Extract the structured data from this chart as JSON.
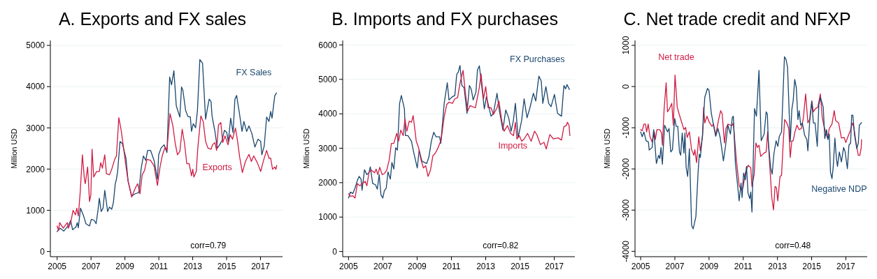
{
  "chart_data": [
    {
      "type": "line",
      "title": "A. Exports and FX sales",
      "ylabel": "Million USD",
      "annotations": [
        "corr=0.79"
      ],
      "grid": "y",
      "xlim": [
        2004.6,
        2018.3
      ],
      "xticks": [
        2005,
        2007,
        2009,
        2011,
        2013,
        2015,
        2017
      ],
      "ylim": [
        -125,
        5120
      ],
      "yticks": [
        0,
        1000,
        2000,
        3000,
        4000,
        5000
      ],
      "series": [
        {
          "name": "FX Sales",
          "color": "#1a476f",
          "x": [
            2005.0,
            2005.18,
            2005.39,
            2005.66,
            2005.8,
            2005.91,
            2006.11,
            2006.19,
            2006.25,
            2006.38,
            2006.56,
            2006.7,
            2006.91,
            2007.02,
            2007.19,
            2007.3,
            2007.41,
            2007.49,
            2007.6,
            2007.71,
            2007.81,
            2007.98,
            2008.09,
            2008.22,
            2008.32,
            2008.43,
            2008.5,
            2008.57,
            2008.71,
            2008.85,
            2009.06,
            2009.19,
            2009.4,
            2009.61,
            2009.82,
            2009.96,
            2010.09,
            2010.23,
            2010.34,
            2010.51,
            2010.72,
            2010.92,
            2010.99,
            2011.13,
            2011.31,
            2011.48,
            2011.64,
            2011.75,
            2011.89,
            2012.03,
            2012.24,
            2012.34,
            2012.42,
            2012.58,
            2012.72,
            2012.86,
            2012.93,
            2013.03,
            2013.17,
            2013.28,
            2013.42,
            2013.58,
            2013.76,
            2013.86,
            2013.97,
            2014.08,
            2014.14,
            2014.31,
            2014.45,
            2014.59,
            2014.73,
            2014.87,
            2015.01,
            2015.1,
            2015.24,
            2015.38,
            2015.49,
            2015.59,
            2015.77,
            2015.91,
            2016.02,
            2016.18,
            2016.32,
            2016.49,
            2016.67,
            2016.85,
            2017.01,
            2017.08,
            2017.22,
            2017.36,
            2017.5,
            2017.6,
            2017.68,
            2017.84,
            2017.94
          ],
          "values": [
            485,
            566,
            496,
            631,
            755,
            529,
            593,
            701,
            577,
            1052,
            863,
            674,
            620,
            782,
            755,
            674,
            998,
            1294,
            971,
            1052,
            1483,
            971,
            1079,
            1025,
            1187,
            1645,
            1753,
            1942,
            2670,
            2616,
            2265,
            1699,
            1348,
            1402,
            1429,
            2023,
            2319,
            2211,
            2454,
            2454,
            2211,
            1753,
            2346,
            2508,
            2589,
            2400,
            4234,
            4045,
            4385,
            3533,
            3263,
            3991,
            3910,
            3425,
            3274,
            3263,
            2913,
            3101,
            3004,
            3425,
            4655,
            4569,
            3209,
            3452,
            3695,
            3641,
            3290,
            2913,
            2508,
            2589,
            2697,
            2940,
            2886,
            2670,
            3236,
            2886,
            3695,
            3786,
            3317,
            2913,
            3155,
            2913,
            3047,
            2859,
            2535,
            2724,
            2670,
            2346,
            2562,
            3263,
            3155,
            3398,
            3236,
            3776,
            3846
          ]
        },
        {
          "name": "Exports",
          "color": "#d01c44",
          "x": [
            2005.0,
            2005.08,
            2005.15,
            2005.36,
            2005.6,
            2005.66,
            2005.8,
            2005.94,
            2006.08,
            2006.16,
            2006.25,
            2006.36,
            2006.49,
            2006.61,
            2006.66,
            2006.8,
            2006.91,
            2006.99,
            2007.06,
            2007.16,
            2007.33,
            2007.49,
            2007.57,
            2007.67,
            2007.81,
            2007.91,
            2008.09,
            2008.22,
            2008.4,
            2008.5,
            2008.64,
            2008.78,
            2008.92,
            2009.06,
            2009.19,
            2009.4,
            2009.61,
            2009.75,
            2009.89,
            2010.02,
            2010.16,
            2010.3,
            2010.51,
            2010.72,
            2010.92,
            2011.06,
            2011.2,
            2011.37,
            2011.48,
            2011.66,
            2011.83,
            2011.97,
            2012.1,
            2012.24,
            2012.38,
            2012.52,
            2012.65,
            2012.79,
            2012.93,
            2013.0,
            2013.07,
            2013.21,
            2013.3,
            2013.48,
            2013.62,
            2013.76,
            2013.9,
            2014.08,
            2014.17,
            2014.31,
            2014.41,
            2014.52,
            2014.66,
            2014.77,
            2014.91,
            2015.08,
            2015.22,
            2015.35,
            2015.52,
            2015.63,
            2015.77,
            2015.93,
            2016.11,
            2016.32,
            2016.46,
            2016.6,
            2016.81,
            2017.01,
            2017.18,
            2017.36,
            2017.5,
            2017.6,
            2017.71,
            2017.84,
            2017.91,
            2017.96
          ],
          "values": [
            620,
            512,
            701,
            566,
            701,
            566,
            701,
            998,
            890,
            1052,
            863,
            1429,
            2346,
            1753,
            1645,
            2050,
            1214,
            1375,
            2481,
            1807,
            1942,
            1942,
            2157,
            2023,
            2346,
            1888,
            1861,
            1996,
            2238,
            2319,
            3247,
            2940,
            2508,
            2077,
            1699,
            1321,
            1537,
            1645,
            1402,
            1861,
            1969,
            2238,
            2211,
            2077,
            1602,
            2023,
            2319,
            2535,
            2454,
            3344,
            3047,
            2616,
            2346,
            2427,
            2967,
            2616,
            2130,
            2130,
            1834,
            1996,
            1807,
            1942,
            2508,
            3290,
            3155,
            2670,
            2508,
            2481,
            2589,
            2643,
            2454,
            3074,
            3128,
            2643,
            2805,
            2589,
            2832,
            2724,
            2994,
            2724,
            2292,
            1915,
            2184,
            2357,
            2184,
            2319,
            2157,
            1942,
            2211,
            2454,
            2265,
            2265,
            1996,
            2050,
            1996,
            2088
          ]
        }
      ]
    },
    {
      "type": "line",
      "title": "B. Imports and FX purchases",
      "ylabel": "Million USD",
      "annotations": [
        "corr=0.82"
      ],
      "grid": "y",
      "xlim": [
        2004.66,
        2018.2
      ],
      "xticks": [
        2005,
        2007,
        2009,
        2011,
        2013,
        2015,
        2017
      ],
      "ylim": [
        -150,
        6130
      ],
      "yticks": [
        0,
        1000,
        2000,
        3000,
        4000,
        5000,
        6000
      ],
      "series": [
        {
          "name": "FX Purchases",
          "color": "#1a476f",
          "x": [
            2005.0,
            2005.11,
            2005.25,
            2005.38,
            2005.52,
            2005.62,
            2005.73,
            2005.79,
            2005.93,
            2006.07,
            2006.2,
            2006.27,
            2006.41,
            2006.57,
            2006.68,
            2006.79,
            2006.89,
            2007.0,
            2007.09,
            2007.2,
            2007.3,
            2007.44,
            2007.53,
            2007.64,
            2007.75,
            2007.85,
            2007.98,
            2008.08,
            2008.26,
            2008.32,
            2008.46,
            2008.67,
            2008.8,
            2009.01,
            2009.12,
            2009.28,
            2009.42,
            2009.56,
            2009.69,
            2009.83,
            2009.97,
            2010.1,
            2010.31,
            2010.38,
            2010.58,
            2010.76,
            2010.86,
            2011.06,
            2011.2,
            2011.31,
            2011.4,
            2011.5,
            2011.61,
            2011.74,
            2011.91,
            2012.05,
            2012.16,
            2012.27,
            2012.43,
            2012.52,
            2012.63,
            2012.81,
            2012.92,
            2013.04,
            2013.18,
            2013.31,
            2013.45,
            2013.66,
            2013.79,
            2014.0,
            2014.17,
            2014.34,
            2014.48,
            2014.61,
            2014.73,
            2014.89,
            2015.1,
            2015.24,
            2015.41,
            2015.58,
            2015.78,
            2015.92,
            2016.1,
            2016.24,
            2016.33,
            2016.51,
            2016.67,
            2016.81,
            2017.01,
            2017.19,
            2017.42,
            2017.56,
            2017.66,
            2017.74,
            2017.88
          ],
          "values": [
            1553,
            1728,
            1683,
            1845,
            2071,
            2181,
            2104,
            1780,
            2375,
            2233,
            2298,
            2460,
            1974,
            1942,
            1812,
            2233,
            1650,
            1553,
            1767,
            1845,
            2311,
            2104,
            2589,
            2395,
            3010,
            2945,
            4304,
            4531,
            4142,
            3366,
            3366,
            3204,
            2880,
            2427,
            2945,
            2621,
            2589,
            2557,
            2751,
            3204,
            3463,
            3333,
            3333,
            3139,
            4304,
            4899,
            4401,
            4498,
            4531,
            5146,
            5210,
            5405,
            4822,
            4757,
            4013,
            4822,
            4706,
            4401,
            4628,
            5275,
            5392,
            4628,
            4142,
            4498,
            4207,
            3929,
            4013,
            4595,
            4110,
            3528,
            4110,
            3884,
            3495,
            3786,
            4304,
            3301,
            3819,
            4433,
            3884,
            4175,
            4595,
            4369,
            5094,
            4951,
            4304,
            4790,
            4304,
            4207,
            4563,
            4013,
            3929,
            4822,
            4725,
            4848,
            4706
          ]
        },
        {
          "name": "Imports",
          "color": "#d01c44",
          "x": [
            2005.0,
            2005.11,
            2005.25,
            2005.38,
            2005.52,
            2005.66,
            2005.79,
            2005.97,
            2006.07,
            2006.2,
            2006.34,
            2006.52,
            2006.61,
            2006.71,
            2006.82,
            2006.96,
            2007.09,
            2007.23,
            2007.37,
            2007.5,
            2007.64,
            2007.81,
            2007.92,
            2008.05,
            2008.19,
            2008.29,
            2008.4,
            2008.54,
            2008.67,
            2008.77,
            2008.95,
            2009.09,
            2009.23,
            2009.37,
            2009.5,
            2009.64,
            2009.78,
            2009.92,
            2010.05,
            2010.19,
            2010.4,
            2010.58,
            2010.73,
            2010.86,
            2011.06,
            2011.2,
            2011.36,
            2011.5,
            2011.68,
            2011.81,
            2011.95,
            2012.09,
            2012.22,
            2012.4,
            2012.5,
            2012.63,
            2012.73,
            2012.87,
            2013.0,
            2013.14,
            2013.31,
            2013.45,
            2013.66,
            2013.77,
            2013.93,
            2014.07,
            2014.27,
            2014.45,
            2014.62,
            2014.73,
            2014.82,
            2014.96,
            2015.1,
            2015.24,
            2015.44,
            2015.65,
            2015.85,
            2015.99,
            2016.19,
            2016.4,
            2016.53,
            2016.74,
            2016.95,
            2017.22,
            2017.42,
            2017.56,
            2017.7,
            2017.77,
            2017.86,
            2017.91
          ],
          "values": [
            1683,
            1599,
            1618,
            1553,
            1974,
            1909,
            1974,
            2039,
            1909,
            2311,
            2363,
            2285,
            2395,
            2233,
            2447,
            2233,
            2265,
            2363,
            2654,
            3139,
            3139,
            3430,
            3204,
            3528,
            3366,
            3851,
            3495,
            3786,
            3754,
            3948,
            3204,
            3010,
            2654,
            2427,
            2492,
            2181,
            2363,
            2783,
            2848,
            2977,
            3236,
            3916,
            4272,
            4336,
            4304,
            4433,
            4466,
            4886,
            5262,
            4628,
            4078,
            4239,
            4207,
            4175,
            4433,
            4770,
            5159,
            4433,
            4790,
            4175,
            4175,
            3981,
            4175,
            4369,
            3819,
            3495,
            3657,
            3430,
            3366,
            3754,
            3269,
            3366,
            3204,
            3269,
            3430,
            3204,
            3495,
            3385,
            3107,
            3172,
            2977,
            3398,
            3269,
            3301,
            3236,
            3625,
            3657,
            3754,
            3657,
            3366
          ]
        }
      ]
    },
    {
      "type": "line",
      "title": "C. Net trade credit and NFXP",
      "ylabel": "Million USD",
      "annotations": [
        "corr=0.48"
      ],
      "grid": "y",
      "xlim": [
        2004.67,
        2018.25
      ],
      "xticks": [
        2005,
        2007,
        2009,
        2011,
        2013,
        2015,
        2017
      ],
      "ylim": [
        -4130,
        1119
      ],
      "yticks": [
        -4000,
        -3000,
        -2000,
        -1000,
        0,
        1000
      ],
      "series": [
        {
          "name": "Net trade",
          "color": "#d01c44",
          "x": [
            2005.0,
            2005.09,
            2005.19,
            2005.28,
            2005.35,
            2005.44,
            2005.54,
            2005.67,
            2005.8,
            2005.86,
            2005.95,
            2006.12,
            2006.22,
            2006.27,
            2006.37,
            2006.49,
            2006.57,
            2006.69,
            2006.82,
            2006.91,
            2007.01,
            2007.14,
            2007.25,
            2007.37,
            2007.53,
            2007.63,
            2007.72,
            2007.85,
            2007.98,
            2008.11,
            2008.17,
            2008.27,
            2008.4,
            2008.49,
            2008.62,
            2008.68,
            2008.75,
            2008.88,
            2009.0,
            2009.17,
            2009.26,
            2009.39,
            2009.56,
            2009.68,
            2009.77,
            2009.9,
            2009.99,
            2010.1,
            2010.25,
            2010.36,
            2010.42,
            2010.59,
            2010.76,
            2010.87,
            2010.99,
            2011.12,
            2011.28,
            2011.44,
            2011.51,
            2011.64,
            2011.74,
            2011.83,
            2011.92,
            2012.02,
            2012.22,
            2012.34,
            2012.43,
            2012.54,
            2012.67,
            2012.77,
            2012.86,
            2012.94,
            2013.02,
            2013.15,
            2013.24,
            2013.33,
            2013.42,
            2013.55,
            2013.66,
            2013.75,
            2013.84,
            2013.92,
            2014.01,
            2014.14,
            2014.27,
            2014.4,
            2014.52,
            2014.65,
            2014.78,
            2014.91,
            2015.01,
            2015.1,
            2015.23,
            2015.36,
            2015.51,
            2015.62,
            2015.74,
            2015.85,
            2015.94,
            2016.03,
            2016.19,
            2016.32,
            2016.41,
            2016.58,
            2016.74,
            2016.9,
            2017.0,
            2017.13,
            2017.26,
            2017.38,
            2017.47,
            2017.6,
            2017.73,
            2017.82,
            2017.9,
            2017.92
          ],
          "values": [
            -1046,
            -1073,
            -911,
            -911,
            -1100,
            -911,
            -1208,
            -1343,
            -1100,
            -1289,
            -1046,
            -1046,
            -1127,
            -1425,
            -560,
            91,
            -613,
            -533,
            -408,
            -938,
            279,
            -505,
            -667,
            -829,
            -1046,
            -992,
            -1235,
            -1100,
            -1533,
            -1668,
            -1533,
            -1846,
            -1219,
            -1560,
            -1208,
            -505,
            -884,
            -721,
            -857,
            -965,
            -911,
            -1181,
            -802,
            -586,
            -667,
            -1370,
            -1019,
            -911,
            -938,
            -938,
            -884,
            -1749,
            -2398,
            -2506,
            -2452,
            -2100,
            -1911,
            -1965,
            -2425,
            -2128,
            -1370,
            -1478,
            -1425,
            -1695,
            -1614,
            -1587,
            -1100,
            -1857,
            -2695,
            -2993,
            -2425,
            -2452,
            -2776,
            -2182,
            -2155,
            -1425,
            -802,
            -884,
            -1019,
            -1722,
            -1316,
            -1316,
            -1127,
            -938,
            -1046,
            -1019,
            -748,
            -180,
            -884,
            -775,
            -343,
            -613,
            -533,
            -505,
            -180,
            -748,
            -992,
            -1154,
            -1262,
            -1019,
            -911,
            -586,
            -829,
            -884,
            -1251,
            -1235,
            -1360,
            -1208,
            -1073,
            -884,
            -992,
            -1370,
            -1668,
            -1668,
            -1478,
            -1289
          ]
        },
        {
          "name": "Negative NDP",
          "color": "#1a476f",
          "x": [
            2005.0,
            2005.09,
            2005.19,
            2005.32,
            2005.45,
            2005.5,
            2005.67,
            2005.76,
            2005.86,
            2005.92,
            2006.05,
            2006.12,
            2006.19,
            2006.27,
            2006.4,
            2006.57,
            2006.66,
            2006.76,
            2006.86,
            2006.99,
            2007.08,
            2007.17,
            2007.27,
            2007.34,
            2007.43,
            2007.53,
            2007.59,
            2007.66,
            2007.75,
            2007.85,
            2007.98,
            2008.07,
            2008.23,
            2008.36,
            2008.43,
            2008.49,
            2008.62,
            2008.75,
            2008.91,
            2009.0,
            2009.13,
            2009.26,
            2009.39,
            2009.52,
            2009.65,
            2009.84,
            2009.97,
            2010.1,
            2010.25,
            2010.36,
            2010.42,
            2010.54,
            2010.67,
            2010.76,
            2010.87,
            2010.93,
            2011.02,
            2011.12,
            2011.19,
            2011.28,
            2011.38,
            2011.44,
            2011.51,
            2011.66,
            2011.77,
            2011.92,
            2012.05,
            2012.22,
            2012.34,
            2012.41,
            2012.47,
            2012.6,
            2012.69,
            2012.79,
            2012.92,
            2013.02,
            2013.11,
            2013.24,
            2013.41,
            2013.5,
            2013.59,
            2013.75,
            2013.84,
            2013.92,
            2014.01,
            2014.1,
            2014.2,
            2014.27,
            2014.36,
            2014.46,
            2014.59,
            2014.72,
            2014.78,
            2014.91,
            2015.01,
            2015.1,
            2015.2,
            2015.33,
            2015.42,
            2015.51,
            2015.68,
            2015.77,
            2015.87,
            2015.95,
            2016.03,
            2016.1,
            2016.19,
            2016.26,
            2016.36,
            2016.45,
            2016.51,
            2016.62,
            2016.74,
            2016.87,
            2016.96,
            2017.09,
            2017.18,
            2017.28,
            2017.34,
            2017.41,
            2017.51,
            2017.64,
            2017.73,
            2017.79,
            2017.92
          ],
          "values": [
            -1100,
            -1219,
            -1100,
            -1316,
            -1343,
            -1543,
            -1478,
            -1046,
            -1533,
            -1868,
            -1668,
            -1749,
            -1478,
            -1884,
            -938,
            -1100,
            -1019,
            -1587,
            -1533,
            -775,
            -965,
            -965,
            -1587,
            -1668,
            -1127,
            -1614,
            -1127,
            -1965,
            -2182,
            -1506,
            -3373,
            -3454,
            -3157,
            -2074,
            -1641,
            -1722,
            -1154,
            -261,
            -45,
            -99,
            -641,
            -938,
            -1208,
            -1019,
            -1235,
            -1803,
            -1425,
            -938,
            -1154,
            -748,
            -721,
            -1857,
            -2398,
            -2776,
            -2344,
            -2695,
            -2100,
            -2263,
            -1938,
            -2587,
            -2722,
            -2560,
            -3047,
            -533,
            -721,
            393,
            -1316,
            -1154,
            -613,
            -667,
            -1370,
            -1965,
            -2128,
            -1641,
            -1316,
            -1452,
            -1208,
            -1100,
            724,
            659,
            469,
            -1343,
            -560,
            -343,
            171,
            -18,
            -802,
            -586,
            -938,
            -884,
            -1181,
            -1289,
            -1560,
            -694,
            -370,
            -884,
            -884,
            -1452,
            -451,
            -261,
            -505,
            -1262,
            -1046,
            -1289,
            -1154,
            -2074,
            -2236,
            -1965,
            -1251,
            -1749,
            -1938,
            -1587,
            -1830,
            -1478,
            -1587,
            -1992,
            -1425,
            -1370,
            -694,
            -694,
            -1181,
            -1506,
            -1370,
            -938,
            -873
          ]
        }
      ]
    }
  ]
}
